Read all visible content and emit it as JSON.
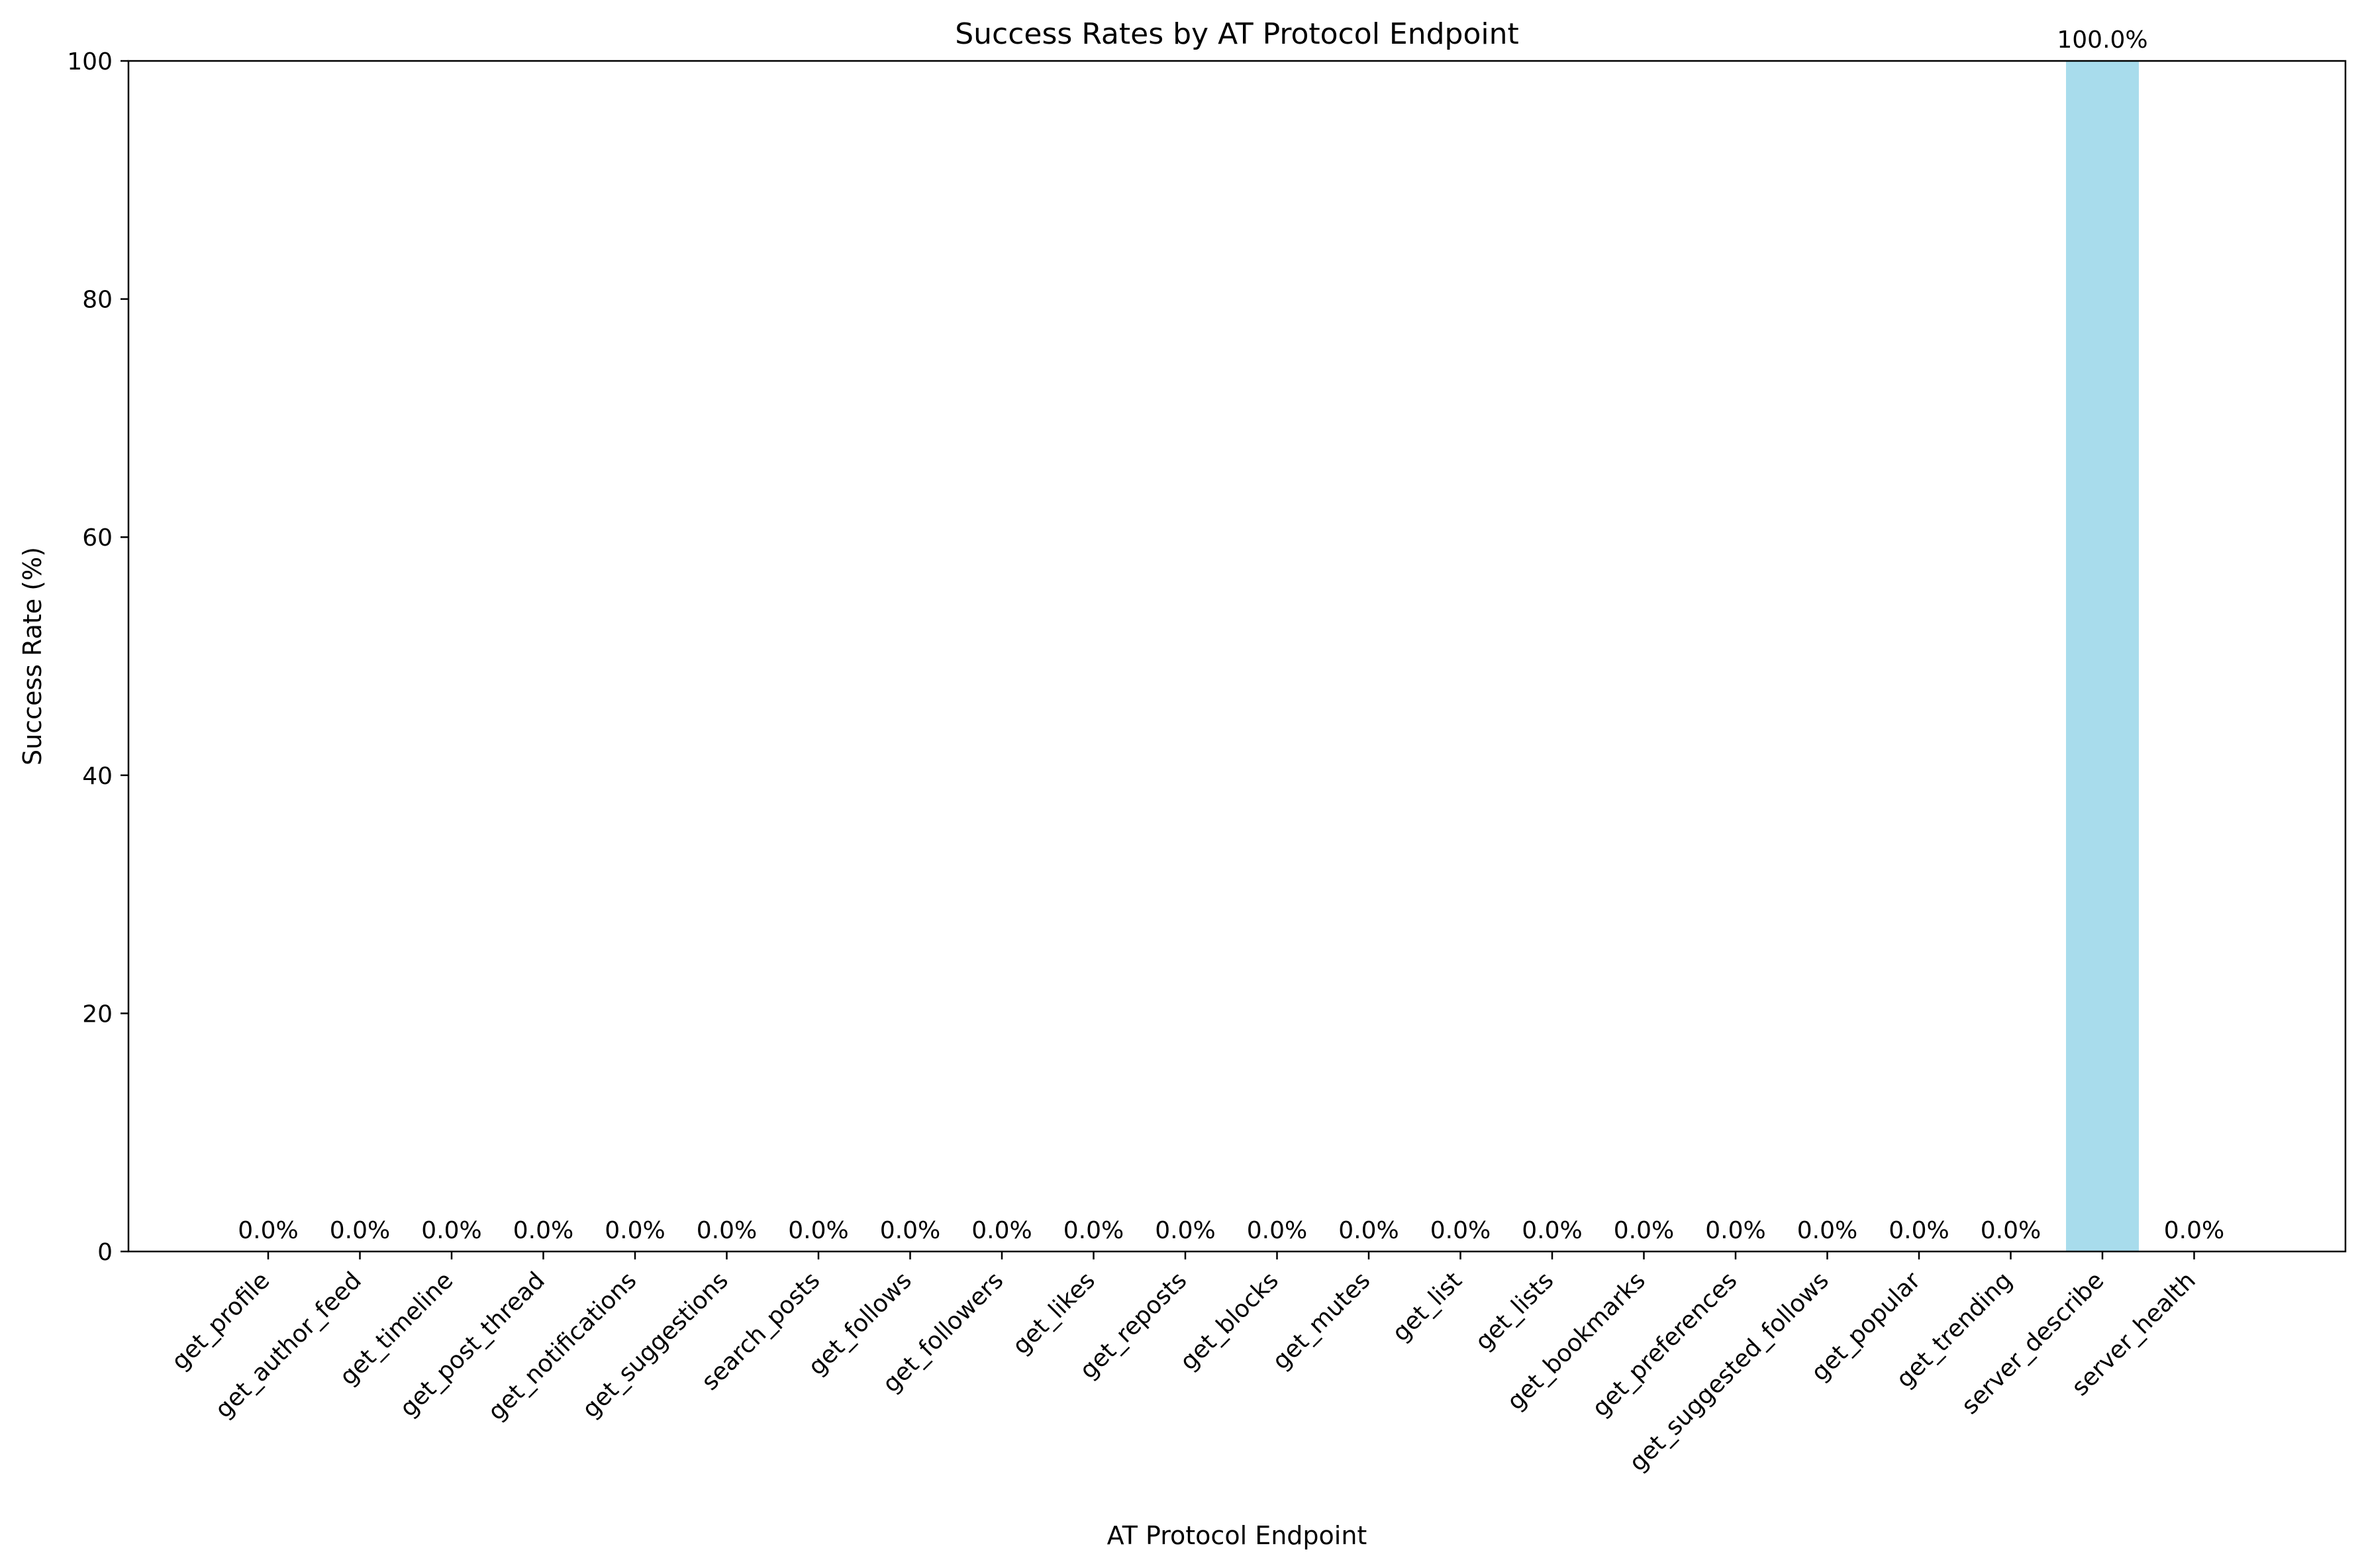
{
  "chart_data": {
    "type": "bar",
    "title": "Success Rates by AT Protocol Endpoint",
    "xlabel": "AT Protocol Endpoint",
    "ylabel": "Success Rate (%)",
    "ylim": [
      0,
      100
    ],
    "yticks": [
      0,
      20,
      40,
      60,
      80,
      100
    ],
    "grid": false,
    "legend": "none",
    "bar_color": "#a8dcec",
    "categories": [
      "get_profile",
      "get_author_feed",
      "get_timeline",
      "get_post_thread",
      "get_notifications",
      "get_suggestions",
      "search_posts",
      "get_follows",
      "get_followers",
      "get_likes",
      "get_reposts",
      "get_blocks",
      "get_mutes",
      "get_list",
      "get_lists",
      "get_bookmarks",
      "get_preferences",
      "get_suggested_follows",
      "get_popular",
      "get_trending",
      "server_describe",
      "server_health"
    ],
    "values": [
      0,
      0,
      0,
      0,
      0,
      0,
      0,
      0,
      0,
      0,
      0,
      0,
      0,
      0,
      0,
      0,
      0,
      0,
      0,
      0,
      100,
      0
    ],
    "data_labels": [
      "0.0%",
      "0.0%",
      "0.0%",
      "0.0%",
      "0.0%",
      "0.0%",
      "0.0%",
      "0.0%",
      "0.0%",
      "0.0%",
      "0.0%",
      "0.0%",
      "0.0%",
      "0.0%",
      "0.0%",
      "0.0%",
      "0.0%",
      "0.0%",
      "0.0%",
      "0.0%",
      "100.0%",
      "0.0%"
    ]
  }
}
